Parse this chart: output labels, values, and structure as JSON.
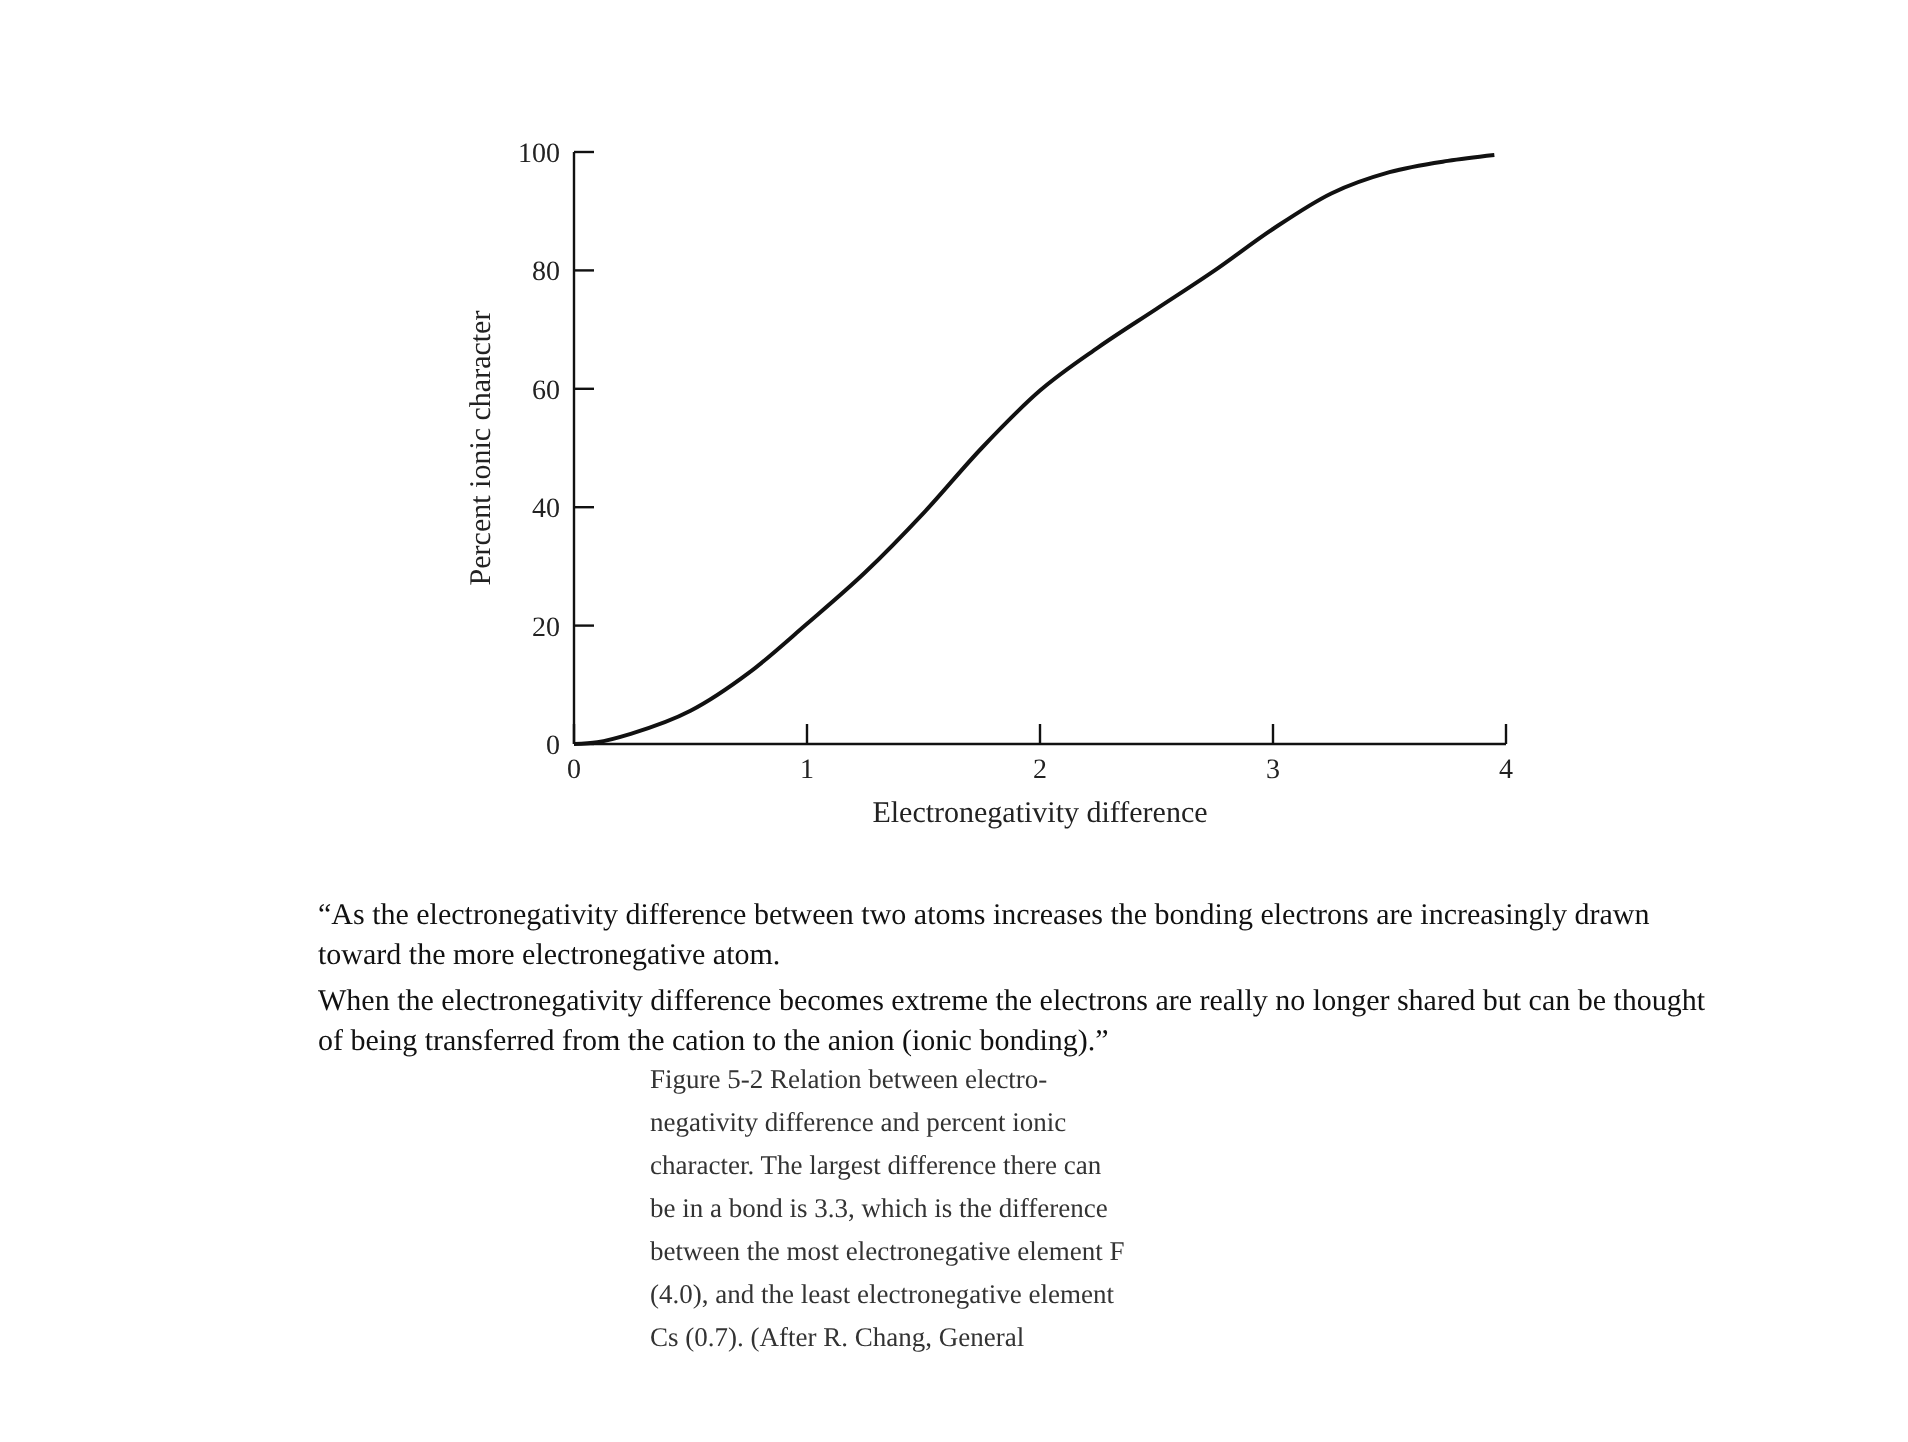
{
  "chart_data": {
    "type": "line",
    "xlabel": "Electronegativity difference",
    "ylabel": "Percent ionic character",
    "x": [
      0,
      0.1,
      0.25,
      0.5,
      0.75,
      1,
      1.25,
      1.5,
      1.75,
      2,
      2.25,
      2.5,
      2.75,
      3,
      3.25,
      3.5,
      3.75,
      3.95
    ],
    "series": [
      {
        "color": "#111111",
        "values": [
          0,
          0.3,
          1.8,
          5.6,
          12,
          20.3,
          29,
          39,
          50,
          59.7,
          67,
          73.5,
          80,
          87,
          93,
          96.6,
          98.5,
          99.5
        ]
      }
    ],
    "xlim": [
      0,
      4
    ],
    "ylim": [
      0,
      100
    ],
    "xticks": [
      0,
      1,
      2,
      3,
      4
    ],
    "yticks": [
      0,
      20,
      40,
      60,
      80,
      100
    ],
    "marker": "none",
    "line_style": "solid",
    "annotations": [
      "“As the electronegativity difference between two atoms increases the bonding electrons are increasingly drawn\ntoward the more electronegative atom.",
      "When the electronegativity difference becomes extreme the electrons are really no longer shared but can be thought\nof being transferred from the cation to the anion (ionic bonding).”",
      "Figure 5-2    Relation between electro-\nnegativity difference and percent ionic\ncharacter. The largest difference there can\nbe in a bond is 3.3, which is the difference\nbetween the most electronegative element F\n(4.0), and the least electronegative element\nCs (0.7). (After R. Chang, General"
    ]
  }
}
